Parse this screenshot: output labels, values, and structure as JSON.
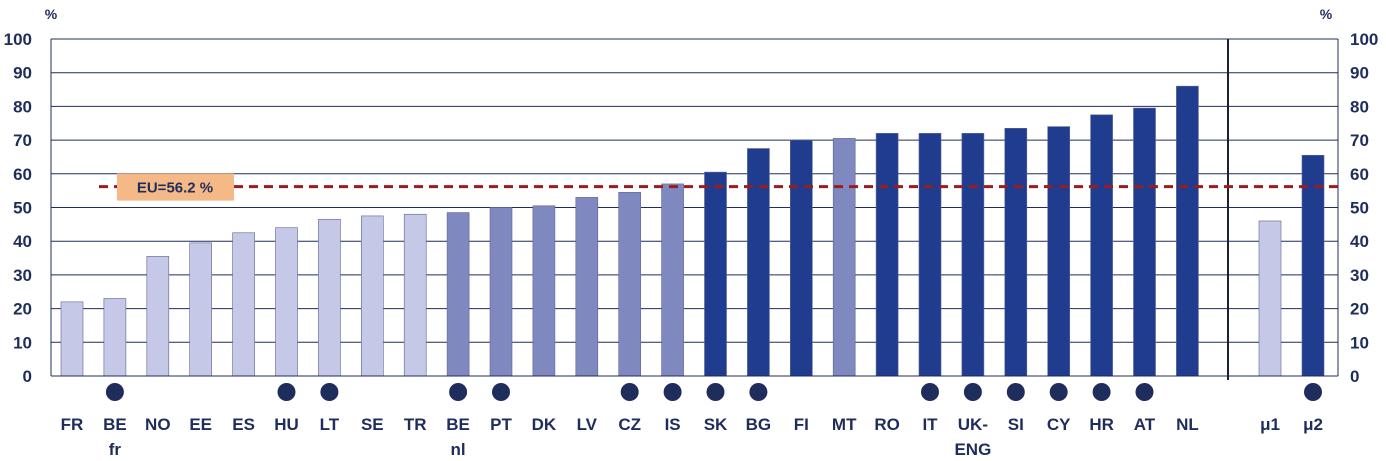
{
  "chart_data": {
    "type": "bar",
    "y_unit": "%",
    "ylim": [
      0,
      100
    ],
    "yticks": [
      0,
      10,
      20,
      30,
      40,
      50,
      60,
      70,
      80,
      90,
      100
    ],
    "grid": true,
    "categories": [
      "FR",
      "BE fr",
      "NO",
      "EE",
      "ES",
      "HU",
      "LT",
      "SE",
      "TR",
      "BE nl",
      "PT",
      "DK",
      "LV",
      "CZ",
      "IS",
      "SK",
      "BG",
      "FI",
      "MT",
      "RO",
      "IT",
      "UK-ENG",
      "SI",
      "CY",
      "HR",
      "AT",
      "NL",
      "μ1",
      "μ2"
    ],
    "category_labels": [
      [
        "FR"
      ],
      [
        "BE",
        "fr"
      ],
      [
        "NO"
      ],
      [
        "EE"
      ],
      [
        "ES"
      ],
      [
        "HU"
      ],
      [
        "LT"
      ],
      [
        "SE"
      ],
      [
        "TR"
      ],
      [
        "BE",
        "nl"
      ],
      [
        "PT"
      ],
      [
        "DK"
      ],
      [
        "LV"
      ],
      [
        "CZ"
      ],
      [
        "IS"
      ],
      [
        "SK"
      ],
      [
        "BG"
      ],
      [
        "FI"
      ],
      [
        "MT"
      ],
      [
        "RO"
      ],
      [
        "IT"
      ],
      [
        "UK-",
        "ENG"
      ],
      [
        "SI"
      ],
      [
        "CY"
      ],
      [
        "HR"
      ],
      [
        "AT"
      ],
      [
        "NL"
      ],
      [
        "μ1"
      ],
      [
        "μ2"
      ]
    ],
    "values": [
      22,
      23,
      35.5,
      39.5,
      42.5,
      44,
      46.5,
      47.5,
      48,
      48.5,
      50,
      50.5,
      53,
      54.5,
      57,
      60.5,
      67.5,
      70,
      70.5,
      72,
      72,
      72,
      73.5,
      74,
      77.5,
      79.5,
      86,
      46,
      65.5
    ],
    "bar_colors": [
      "#c5c8e6",
      "#c5c8e6",
      "#c5c8e6",
      "#c5c8e6",
      "#c5c8e6",
      "#c5c8e6",
      "#c5c8e6",
      "#c5c8e6",
      "#c5c8e6",
      "#8088c0",
      "#8088c0",
      "#8088c0",
      "#8088c0",
      "#8088c0",
      "#8088c0",
      "#1f3c8f",
      "#1f3c8f",
      "#1f3c8f",
      "#8088c0",
      "#1f3c8f",
      "#1f3c8f",
      "#1f3c8f",
      "#1f3c8f",
      "#1f3c8f",
      "#1f3c8f",
      "#1f3c8f",
      "#1f3c8f",
      "#c5c8e6",
      "#1f3c8f"
    ],
    "markers": [
      false,
      true,
      false,
      false,
      false,
      true,
      true,
      false,
      false,
      true,
      true,
      false,
      false,
      true,
      true,
      true,
      true,
      false,
      false,
      false,
      true,
      true,
      true,
      true,
      true,
      true,
      false,
      false,
      true
    ],
    "reference_line": {
      "value": 56.2,
      "label": "EU=56.2 %",
      "color": "#9b1c1c",
      "label_bg": "#f5b887"
    },
    "colors": {
      "axis_text": "#1f2d5c",
      "marker": "#1f2d5c",
      "grid": "#1f2d5c"
    }
  }
}
